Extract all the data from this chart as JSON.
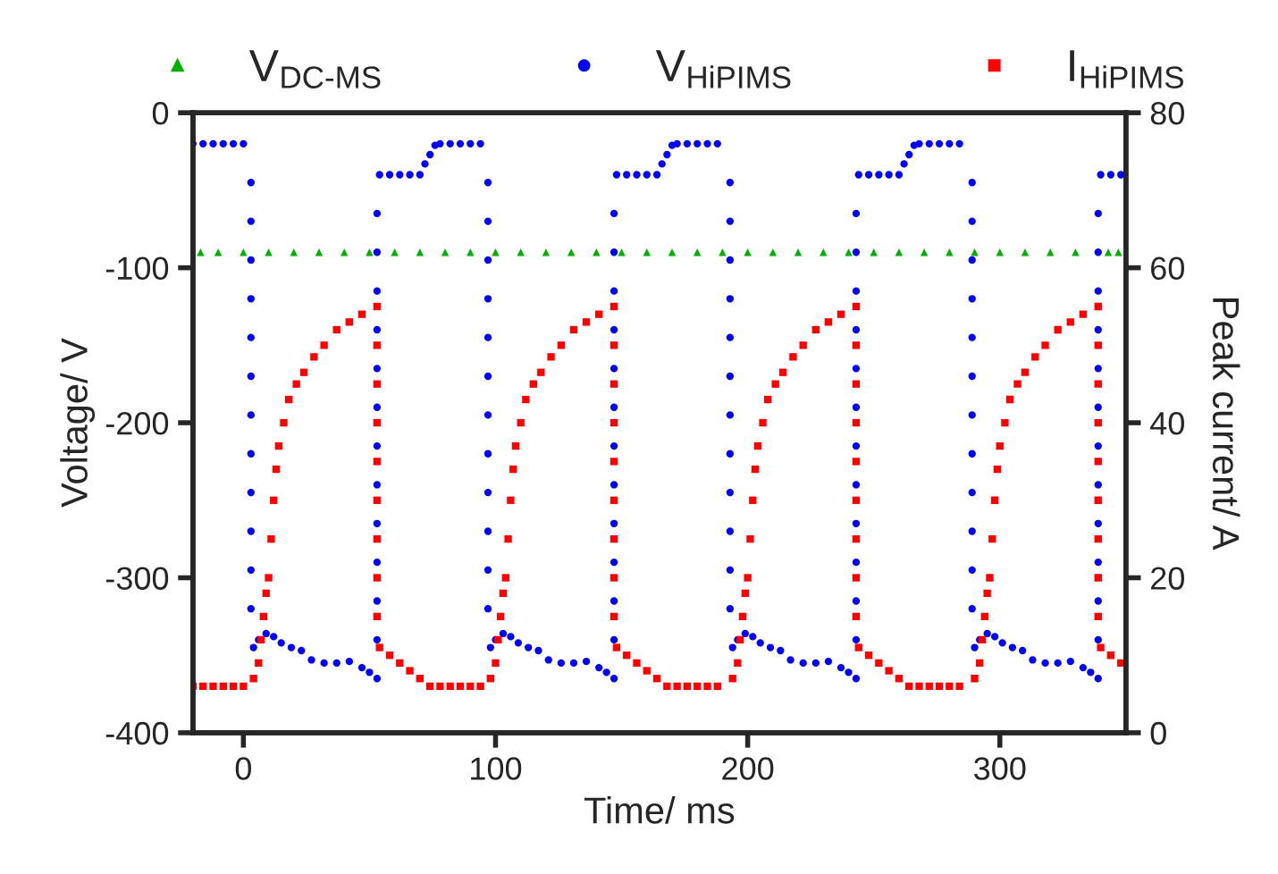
{
  "chart_data": {
    "type": "scatter",
    "xlabel": "Time/ ms",
    "ylabel": "Voltage/ V",
    "y2label": "Peak current/ A",
    "xlim": [
      -20,
      350
    ],
    "xticks": [
      0,
      100,
      200,
      300
    ],
    "ylim": [
      -400,
      0
    ],
    "yticks": [
      -400,
      -300,
      -200,
      -100,
      0
    ],
    "y2lim": [
      0,
      80
    ],
    "y2ticks": [
      0,
      20,
      40,
      60,
      80
    ],
    "legend": "top",
    "grid": false,
    "series": [
      {
        "name": "V$_{DC-MS}$",
        "color": "#00b000",
        "marker": "triangle",
        "x": [
          -17,
          -10,
          0,
          10,
          20,
          30,
          40,
          50,
          60,
          70,
          80,
          90,
          100,
          110,
          120,
          130,
          140,
          150,
          160,
          170,
          180,
          190,
          200,
          210,
          220,
          230,
          240,
          250,
          260,
          270,
          280,
          290,
          300,
          310,
          320,
          330,
          343,
          347
        ],
        "values": [
          -90,
          -90,
          -90,
          -90,
          -90,
          -90,
          -90,
          -90,
          -90,
          -90,
          -90,
          -90,
          -90,
          -90,
          -90,
          -90,
          -90,
          -90,
          -90,
          -90,
          -90,
          -90,
          -90,
          -90,
          -90,
          -90,
          -90,
          -90,
          -90,
          -90,
          -90,
          -90,
          -90,
          -90,
          -90,
          -90,
          -90,
          -90
        ]
      },
      {
        "name": "V$_{HiPIMS}$",
        "color": "#0000ff",
        "marker": "circle",
        "x": [
          -20,
          -16,
          -12,
          -8,
          -4,
          0,
          3,
          3,
          3,
          3,
          3,
          3,
          3,
          3,
          3,
          3,
          3,
          3,
          4,
          6,
          9,
          12,
          15,
          19,
          23,
          27,
          32,
          37,
          42,
          47,
          50,
          53,
          53,
          53,
          53,
          53,
          53,
          53,
          53,
          53,
          53,
          53,
          53,
          53,
          54,
          58,
          62,
          66,
          70,
          72,
          74,
          76,
          78,
          82,
          86,
          90,
          94,
          97,
          97,
          97,
          97,
          97,
          97,
          97,
          97,
          97,
          97,
          97,
          97,
          98,
          100,
          103,
          106,
          109,
          113,
          117,
          121,
          126,
          131,
          136,
          141,
          144,
          147,
          147,
          147,
          147,
          147,
          147,
          147,
          147,
          147,
          147,
          147,
          147,
          147,
          148,
          152,
          156,
          160,
          164,
          166,
          168,
          170,
          172,
          176,
          180,
          184,
          188,
          193,
          193,
          193,
          193,
          193,
          193,
          193,
          193,
          193,
          193,
          193,
          193,
          194,
          196,
          199,
          202,
          205,
          209,
          213,
          217,
          222,
          227,
          232,
          237,
          240,
          243,
          243,
          243,
          243,
          243,
          243,
          243,
          243,
          243,
          243,
          243,
          243,
          243,
          244,
          248,
          252,
          256,
          260,
          262,
          264,
          266,
          268,
          272,
          276,
          280,
          284,
          289,
          289,
          289,
          289,
          289,
          289,
          289,
          289,
          289,
          289,
          289,
          289,
          290,
          292,
          295,
          298,
          301,
          305,
          309,
          313,
          318,
          323,
          328,
          333,
          336,
          339,
          339,
          339,
          339,
          339,
          339,
          339,
          339,
          339,
          339,
          339,
          339,
          339,
          340,
          344,
          348
        ],
        "values": [
          -20,
          -20,
          -20,
          -20,
          -20,
          -20,
          -45,
          -70,
          -95,
          -120,
          -145,
          -170,
          -195,
          -220,
          -245,
          -270,
          -295,
          -320,
          -345,
          -340,
          -336,
          -338,
          -342,
          -345,
          -347,
          -353,
          -355,
          -355,
          -354,
          -358,
          -361,
          -365,
          -340,
          -315,
          -290,
          -265,
          -240,
          -215,
          -190,
          -165,
          -140,
          -115,
          -90,
          -65,
          -40,
          -40,
          -40,
          -40,
          -40,
          -33,
          -27,
          -21,
          -20,
          -20,
          -20,
          -20,
          -20,
          -45,
          -70,
          -95,
          -120,
          -145,
          -170,
          -195,
          -220,
          -245,
          -270,
          -295,
          -320,
          -345,
          -340,
          -336,
          -338,
          -342,
          -345,
          -347,
          -353,
          -355,
          -355,
          -354,
          -358,
          -361,
          -365,
          -340,
          -315,
          -290,
          -265,
          -240,
          -215,
          -190,
          -165,
          -140,
          -115,
          -90,
          -65,
          -40,
          -40,
          -40,
          -40,
          -40,
          -33,
          -27,
          -21,
          -20,
          -20,
          -20,
          -20,
          -20,
          -45,
          -70,
          -95,
          -120,
          -145,
          -170,
          -195,
          -220,
          -245,
          -270,
          -295,
          -320,
          -345,
          -340,
          -336,
          -338,
          -342,
          -345,
          -347,
          -353,
          -355,
          -355,
          -354,
          -358,
          -361,
          -365,
          -340,
          -315,
          -290,
          -265,
          -240,
          -215,
          -190,
          -165,
          -140,
          -115,
          -90,
          -65,
          -40,
          -40,
          -40,
          -40,
          -40,
          -33,
          -27,
          -21,
          -20,
          -20,
          -20,
          -20,
          -20,
          -45,
          -70,
          -95,
          -120,
          -145,
          -170,
          -195,
          -220,
          -245,
          -270,
          -295,
          -320,
          -345,
          -340,
          -336,
          -338,
          -342,
          -345,
          -347,
          -353,
          -355,
          -355,
          -354,
          -358,
          -361,
          -365,
          -340,
          -315,
          -290,
          -265,
          -240,
          -215,
          -190,
          -165,
          -140,
          -115,
          -90,
          -65,
          -40,
          -40,
          -40
        ]
      },
      {
        "name": "I$_{HiPIMS}$",
        "color": "#ff0000",
        "marker": "square",
        "axis": "y2",
        "x": [
          -20,
          -16,
          -12,
          -8,
          -4,
          0,
          4,
          6,
          7,
          8,
          9,
          10,
          11,
          12,
          13,
          14,
          16,
          18,
          21,
          24,
          28,
          32,
          37,
          42,
          47,
          53,
          53,
          53,
          53,
          53,
          53,
          53,
          53,
          53,
          54,
          58,
          62,
          66,
          70,
          74,
          78,
          82,
          86,
          90,
          94,
          98,
          100,
          101,
          102,
          103,
          104,
          105,
          106,
          107,
          108,
          110,
          112,
          115,
          118,
          122,
          126,
          131,
          136,
          141,
          147,
          147,
          147,
          147,
          147,
          147,
          147,
          147,
          147,
          148,
          152,
          156,
          160,
          164,
          168,
          172,
          176,
          180,
          184,
          188,
          194,
          196,
          197,
          198,
          199,
          200,
          201,
          202,
          203,
          204,
          206,
          208,
          211,
          214,
          218,
          222,
          227,
          232,
          237,
          243,
          243,
          243,
          243,
          243,
          243,
          243,
          243,
          243,
          244,
          248,
          252,
          256,
          260,
          264,
          268,
          272,
          276,
          280,
          284,
          290,
          292,
          293,
          294,
          295,
          296,
          297,
          298,
          299,
          300,
          302,
          304,
          307,
          310,
          314,
          318,
          323,
          328,
          333,
          339,
          339,
          339,
          339,
          339,
          339,
          339,
          339,
          339,
          340,
          344,
          348
        ],
        "values": [
          6,
          6,
          6,
          6,
          6,
          6,
          7,
          9,
          12,
          15,
          18,
          20,
          25,
          30,
          34,
          37,
          40,
          43,
          45,
          46.5,
          48.5,
          50,
          52,
          53,
          54,
          55,
          50,
          45,
          40,
          35,
          30,
          25,
          20,
          15,
          11,
          10,
          9,
          8,
          7,
          6,
          6,
          6,
          6,
          6,
          6,
          7,
          9,
          12,
          15,
          18,
          20,
          25,
          30,
          34,
          37,
          40,
          43,
          45,
          46.5,
          48.5,
          50,
          52,
          53,
          54,
          55,
          50,
          45,
          40,
          35,
          30,
          25,
          20,
          15,
          11,
          10,
          9,
          8,
          7,
          6,
          6,
          6,
          6,
          6,
          6,
          7,
          9,
          12,
          15,
          18,
          20,
          25,
          30,
          34,
          37,
          40,
          43,
          45,
          46.5,
          48.5,
          50,
          52,
          53,
          54,
          55,
          50,
          45,
          40,
          35,
          30,
          25,
          20,
          15,
          11,
          10,
          9,
          8,
          7,
          6,
          6,
          6,
          6,
          6,
          6,
          7,
          9,
          12,
          15,
          18,
          20,
          25,
          30,
          34,
          37,
          40,
          43,
          45,
          46.5,
          48.5,
          50,
          52,
          53,
          54,
          55,
          50,
          45,
          40,
          35,
          30,
          25,
          20,
          15,
          11,
          10,
          9
        ]
      }
    ]
  }
}
